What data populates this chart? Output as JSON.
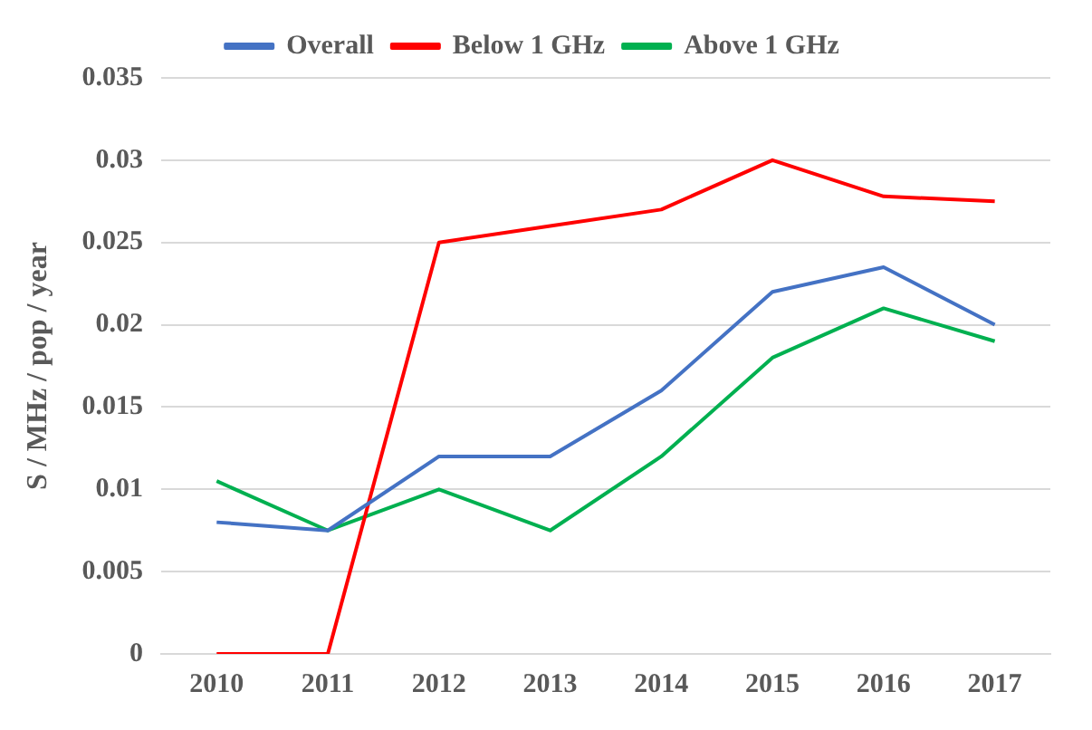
{
  "chart_data": {
    "type": "line",
    "ylabel": "S / MHz / pop / year",
    "categories": [
      "2010",
      "2011",
      "2012",
      "2013",
      "2014",
      "2015",
      "2016",
      "2017"
    ],
    "series": [
      {
        "name": "Overall",
        "color": "#4472c4",
        "values": [
          0.008,
          0.0075,
          0.012,
          0.012,
          0.016,
          0.022,
          0.0235,
          0.02
        ]
      },
      {
        "name": "Below 1 GHz",
        "color": "#ff0000",
        "values": [
          0,
          0,
          0.025,
          0.026,
          0.027,
          0.03,
          0.0278,
          0.0275
        ]
      },
      {
        "name": "Above 1 GHz",
        "color": "#00b050",
        "values": [
          0.0105,
          0.0075,
          0.01,
          0.0075,
          0.012,
          0.018,
          0.021,
          0.019
        ]
      }
    ],
    "ylim": [
      0,
      0.035
    ],
    "yticks": [
      0,
      0.005,
      0.01,
      0.015,
      0.02,
      0.025,
      0.03,
      0.035
    ],
    "grid": "y",
    "legend": "top",
    "marker": "none",
    "line_style": "solid"
  }
}
